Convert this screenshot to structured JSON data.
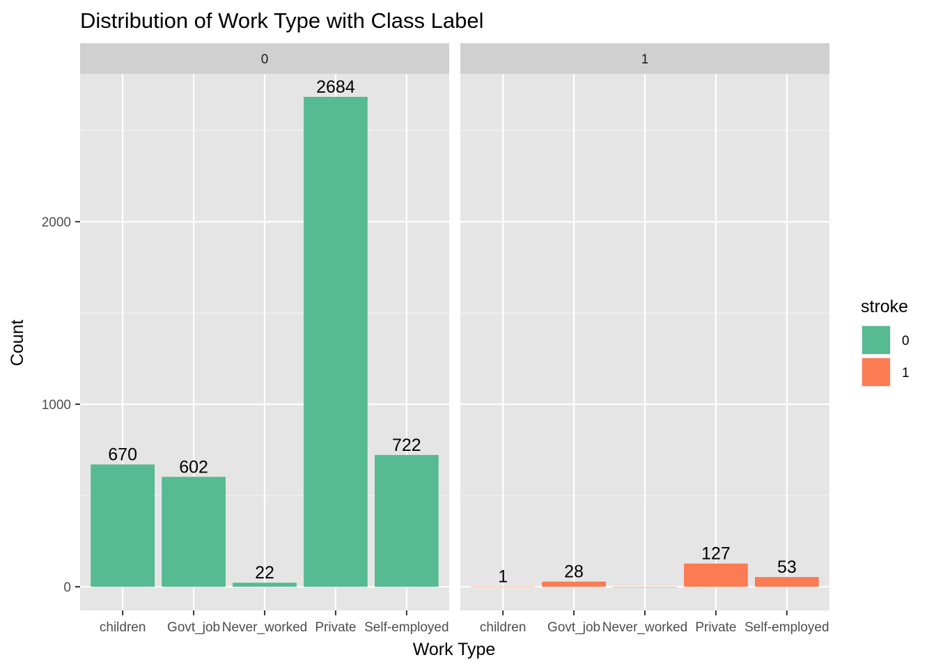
{
  "chart_data": {
    "type": "bar",
    "title": "Distribution of Work Type with Class Label",
    "xlabel": "Work Type",
    "ylabel": "Count",
    "categories": [
      "children",
      "Govt_job",
      "Never_worked",
      "Private",
      "Self-employed"
    ],
    "y_ticks": [
      0,
      1000,
      2000
    ],
    "ylim": [
      -130,
      2810
    ],
    "grid": true,
    "facets": [
      {
        "label": "0",
        "series": "0",
        "values": [
          670,
          602,
          22,
          2684,
          722
        ]
      },
      {
        "label": "1",
        "series": "1",
        "values": [
          1,
          28,
          0,
          127,
          53
        ]
      }
    ],
    "data_labels": [
      [
        "670",
        "602",
        "22",
        "2684",
        "722"
      ],
      [
        "1",
        "28",
        "",
        "127",
        "53"
      ]
    ],
    "legend": {
      "title": "stroke",
      "position": "right",
      "entries": [
        {
          "label": "0",
          "color": "#56BA93"
        },
        {
          "label": "1",
          "color": "#FB7B53"
        }
      ]
    },
    "colors": {
      "panel_background": "#E5E5E5",
      "strip_background": "#D0D0D0",
      "grid": "#FFFFFF"
    }
  }
}
